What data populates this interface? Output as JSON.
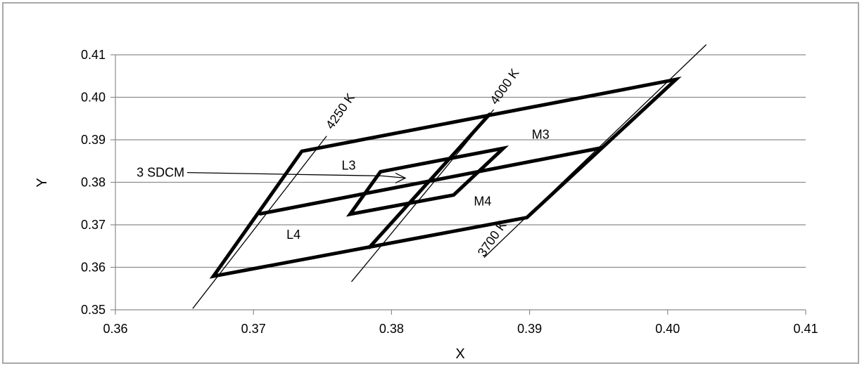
{
  "chart_data": {
    "type": "line",
    "xlabel": "X",
    "ylabel": "Y",
    "xlim": [
      0.36,
      0.41
    ],
    "ylim": [
      0.35,
      0.41
    ],
    "xticks": [
      "0.36",
      "0.37",
      "0.38",
      "0.39",
      "0.40",
      "0.41"
    ],
    "yticks": [
      "0.35",
      "0.36",
      "0.37",
      "0.38",
      "0.39",
      "0.40",
      "0.41"
    ],
    "grid": "horizontal",
    "legend": "none",
    "series": [
      {
        "type": "polyline",
        "weight": "thick",
        "points": [
          [
            0.3735,
            0.3873
          ],
          [
            0.4006,
            0.4042
          ],
          [
            0.3898,
            0.3717
          ],
          [
            0.3671,
            0.3579
          ],
          [
            0.3735,
            0.3873
          ]
        ]
      },
      {
        "type": "polyline",
        "weight": "thick",
        "points": [
          [
            0.3705,
            0.3726
          ],
          [
            0.3952,
            0.3881
          ]
        ]
      },
      {
        "type": "polyline",
        "weight": "thick",
        "points": [
          [
            0.3871,
            0.396
          ],
          [
            0.3784,
            0.3647
          ]
        ]
      },
      {
        "type": "polyline",
        "weight": "thick",
        "points": [
          [
            0.3792,
            0.3825
          ],
          [
            0.3881,
            0.388
          ],
          [
            0.3845,
            0.377
          ],
          [
            0.377,
            0.3725
          ],
          [
            0.3792,
            0.3825
          ]
        ]
      },
      {
        "type": "line",
        "weight": "thin",
        "points": [
          [
            0.3656,
            0.3503
          ],
          [
            0.3753,
            0.3909
          ]
        ]
      },
      {
        "type": "line",
        "weight": "thin",
        "points": [
          [
            0.3771,
            0.3566
          ],
          [
            0.3874,
            0.3971
          ]
        ]
      },
      {
        "type": "line",
        "weight": "thin",
        "points": [
          [
            0.3867,
            0.3623
          ],
          [
            0.4028,
            0.4124
          ]
        ]
      },
      {
        "type": "line",
        "weight": "thin",
        "points": [
          [
            0.3652,
            0.3823
          ],
          [
            0.3793,
            0.3815
          ]
        ]
      },
      {
        "type": "line",
        "weight": "thin",
        "points": [
          [
            0.3793,
            0.3815
          ],
          [
            0.381,
            0.381
          ]
        ]
      }
    ],
    "annotations": [
      {
        "text": "4250 K",
        "x": 0.3757,
        "y": 0.3923,
        "rotate": -55
      },
      {
        "text": "4000 K",
        "x": 0.3876,
        "y": 0.3981,
        "rotate": -55
      },
      {
        "text": "3700 K",
        "x": 0.3867,
        "y": 0.3623,
        "rotate": -55
      },
      {
        "text": "M3",
        "x": 0.3908,
        "y": 0.3912,
        "rotate": 0
      },
      {
        "text": "L3",
        "x": 0.3769,
        "y": 0.384,
        "rotate": 0
      },
      {
        "text": "M4",
        "x": 0.3866,
        "y": 0.3755,
        "rotate": 0
      },
      {
        "text": "L4",
        "x": 0.3729,
        "y": 0.3677,
        "rotate": 0
      },
      {
        "text": "3 SDCM",
        "x": 0.365,
        "y": 0.3823,
        "rotate": 0
      }
    ]
  }
}
